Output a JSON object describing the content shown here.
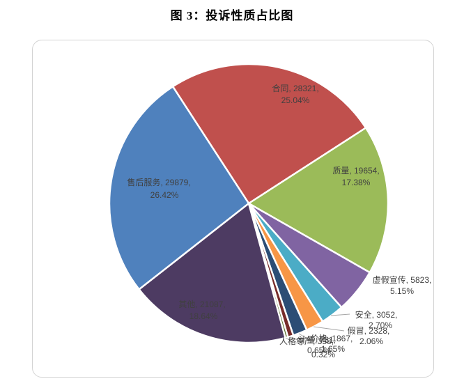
{
  "page": {
    "figure_title": "图 3：投诉性质占比图"
  },
  "chart_data": {
    "type": "pie",
    "title": "图 3：投诉性质占比图",
    "legend_position": "none",
    "label_format": "{name}, {value}, {pct}",
    "direction": "clockwise",
    "start_angle_deg": -33,
    "total": 113100,
    "label_text_color": "#404040",
    "slices": [
      {
        "key": "contract",
        "name": "合同",
        "value": 28321,
        "pct": "25.04%",
        "color": "#C0504D",
        "label_placement": "inside"
      },
      {
        "key": "quality",
        "name": "质量",
        "value": 19654,
        "pct": "17.38%",
        "color": "#9BBB59",
        "label_placement": "inside"
      },
      {
        "key": "false-advertising",
        "name": "虚假宣传",
        "value": 5823,
        "pct": "5.15%",
        "color": "#8064A2",
        "label_placement": "outside"
      },
      {
        "key": "safety",
        "name": "安全",
        "value": 3052,
        "pct": "2.70%",
        "color": "#4BACC6",
        "label_placement": "outside"
      },
      {
        "key": "counterfeit",
        "name": "假冒",
        "value": 2328,
        "pct": "2.06%",
        "color": "#F79646",
        "label_placement": "outside"
      },
      {
        "key": "price",
        "name": "价格",
        "value": 1867,
        "pct": "1.65%",
        "color": "#2C4D75",
        "label_placement": "outside"
      },
      {
        "key": "measurement",
        "name": "计量",
        "value": 731,
        "pct": "0.65%",
        "color": "#772C2A",
        "label_placement": "outside"
      },
      {
        "key": "personal-dignity",
        "name": "人格尊严",
        "value": 358,
        "pct": "0.32%",
        "color": "#5F7530",
        "label_placement": "outside"
      },
      {
        "key": "others",
        "name": "其他",
        "value": 21087,
        "pct": "18.64%",
        "color": "#4D3B62",
        "label_placement": "inside"
      },
      {
        "key": "after-sales-service",
        "name": "售后服务",
        "value": 29879,
        "pct": "26.42%",
        "color": "#4F81BD",
        "label_placement": "inside"
      }
    ]
  }
}
